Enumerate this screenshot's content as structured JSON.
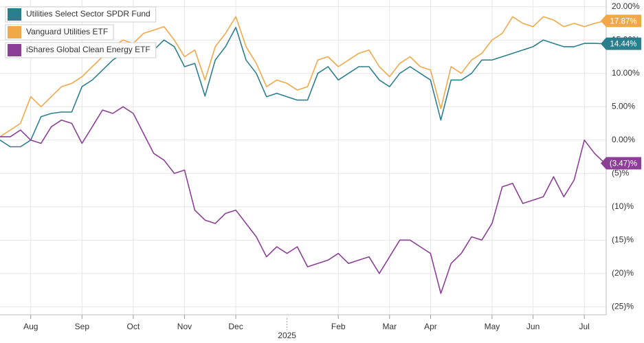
{
  "chart_data": {
    "type": "line",
    "categories": [
      null,
      null,
      null,
      "Aug",
      null,
      null,
      null,
      null,
      "Sep",
      null,
      null,
      null,
      null,
      "Oct",
      null,
      null,
      null,
      null,
      "Nov",
      null,
      null,
      null,
      null,
      "Dec",
      null,
      null,
      null,
      null,
      "2025",
      null,
      null,
      null,
      null,
      "Feb",
      null,
      null,
      null,
      null,
      "Mar",
      null,
      null,
      null,
      "Apr",
      null,
      null,
      null,
      null,
      null,
      "May",
      null,
      null,
      null,
      "Jun",
      null,
      null,
      null,
      null,
      "Jul",
      null,
      null
    ],
    "series": [
      {
        "name": "Utilities Select Sector SPDR Fund",
        "color": "#2a7f8f",
        "end_label": "14.44%",
        "values": [
          0,
          -1,
          -1,
          0,
          3.5,
          4,
          4.2,
          4.2,
          8,
          9,
          10.5,
          12,
          13,
          13,
          13,
          13.5,
          15,
          14,
          11,
          11.5,
          6.6,
          12,
          14,
          16.9,
          12,
          10,
          6.5,
          7,
          6.5,
          6,
          6,
          10,
          11,
          9,
          10,
          11,
          11,
          9,
          8,
          10,
          11,
          10,
          9,
          3,
          9,
          9,
          10,
          12,
          12,
          12.5,
          13,
          13.5,
          14,
          15,
          14.5,
          14,
          14,
          14.5,
          14.5,
          14.44
        ]
      },
      {
        "name": "Vanguard Utilities ETF",
        "color": "#f0a848",
        "end_label": "17.87%",
        "values": [
          0.5,
          1.5,
          2.5,
          6.5,
          5,
          6.5,
          8,
          8.5,
          9.5,
          11,
          12.5,
          14,
          15,
          14.5,
          16,
          16.5,
          17,
          15,
          12.5,
          13.5,
          9,
          14,
          16,
          18.5,
          14,
          11.5,
          8,
          9,
          8.5,
          7.5,
          8,
          12,
          12.5,
          11,
          12,
          13,
          13.5,
          11,
          9.5,
          11.5,
          12.5,
          11,
          10.5,
          4.7,
          11,
          10,
          12,
          13,
          15,
          16,
          18.5,
          17.5,
          17,
          18.5,
          18,
          17,
          17.5,
          17,
          17.5,
          17.87
        ]
      },
      {
        "name": "iShares Global Clean Energy ETF",
        "color": "#8b3f96",
        "end_label": "(3.47)%",
        "values": [
          0.5,
          0.5,
          1.5,
          0,
          -0.5,
          2,
          3,
          2.5,
          -0.5,
          2,
          4.5,
          4,
          5,
          4,
          1,
          -2,
          -3,
          -5,
          -4.5,
          -10.5,
          -12,
          -12.5,
          -11,
          -10.5,
          -12.5,
          -14.5,
          -17.5,
          -16,
          -17,
          -16,
          -19,
          -18.5,
          -18,
          -17,
          -18.5,
          -18,
          -17.5,
          -20,
          -17.5,
          -15,
          -15,
          -16,
          -17,
          -23,
          -18.5,
          -17,
          -14.5,
          -15,
          -12.5,
          -7,
          -6.5,
          -9.5,
          -9,
          -8.5,
          -5.5,
          -8.5,
          -6,
          0,
          -2,
          -3.47
        ]
      }
    ],
    "ylim": [
      -26.2,
      21.0
    ],
    "yticks": [
      {
        "value": 20,
        "label": "20.00%"
      },
      {
        "value": 15,
        "label": "15.00%"
      },
      {
        "value": 10,
        "label": "10.00%"
      },
      {
        "value": 5,
        "label": "5.00%"
      },
      {
        "value": 0,
        "label": "0.00%"
      },
      {
        "value": -5,
        "label": "(5)%"
      },
      {
        "value": -10,
        "label": "(10)%"
      },
      {
        "value": -15,
        "label": "(15)%"
      },
      {
        "value": -20,
        "label": "(20)%"
      },
      {
        "value": -25,
        "label": "(25)%"
      }
    ],
    "grid": true,
    "legend": "top-left"
  }
}
